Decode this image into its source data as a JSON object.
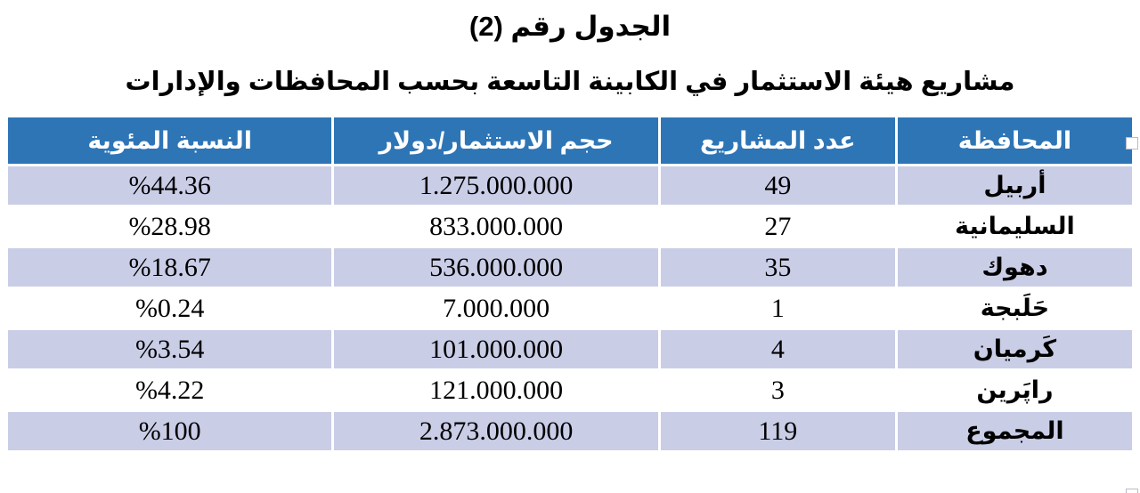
{
  "page": {
    "title": "الجدول رقم (2)",
    "subtitle": "مشاريع هيئة الاستثمار في الكابينة التاسعة بحسب المحافظات والإدارات"
  },
  "table": {
    "headers": {
      "governorate": "المحافظة",
      "projects": "عدد المشاريع",
      "investment": "حجم الاستثمار/دولار",
      "percentage": "النسبة المئوية"
    },
    "rows": [
      {
        "governorate": "أربيل",
        "projects": "49",
        "investment": "1.275.000.000",
        "percentage": "%44.36"
      },
      {
        "governorate": "السليمانية",
        "projects": "27",
        "investment": "833.000.000",
        "percentage": "%28.98"
      },
      {
        "governorate": "دهوك",
        "projects": "35",
        "investment": "536.000.000",
        "percentage": "%18.67"
      },
      {
        "governorate": "حَلَبجة",
        "projects": "1",
        "investment": "7.000.000",
        "percentage": "%0.24"
      },
      {
        "governorate": "كَرميان",
        "projects": "4",
        "investment": "101.000.000",
        "percentage": "%3.54"
      },
      {
        "governorate": "راپَرين",
        "projects": "3",
        "investment": "121.000.000",
        "percentage": "%4.22"
      },
      {
        "governorate": "المجموع",
        "projects": "119",
        "investment": "2.873.000.000",
        "percentage": "%100"
      }
    ]
  },
  "colors": {
    "header_bg": "#2e75b6",
    "header_text": "#ffffff",
    "row_alt_bg": "#c9cde6",
    "row_bg": "#ffffff"
  }
}
